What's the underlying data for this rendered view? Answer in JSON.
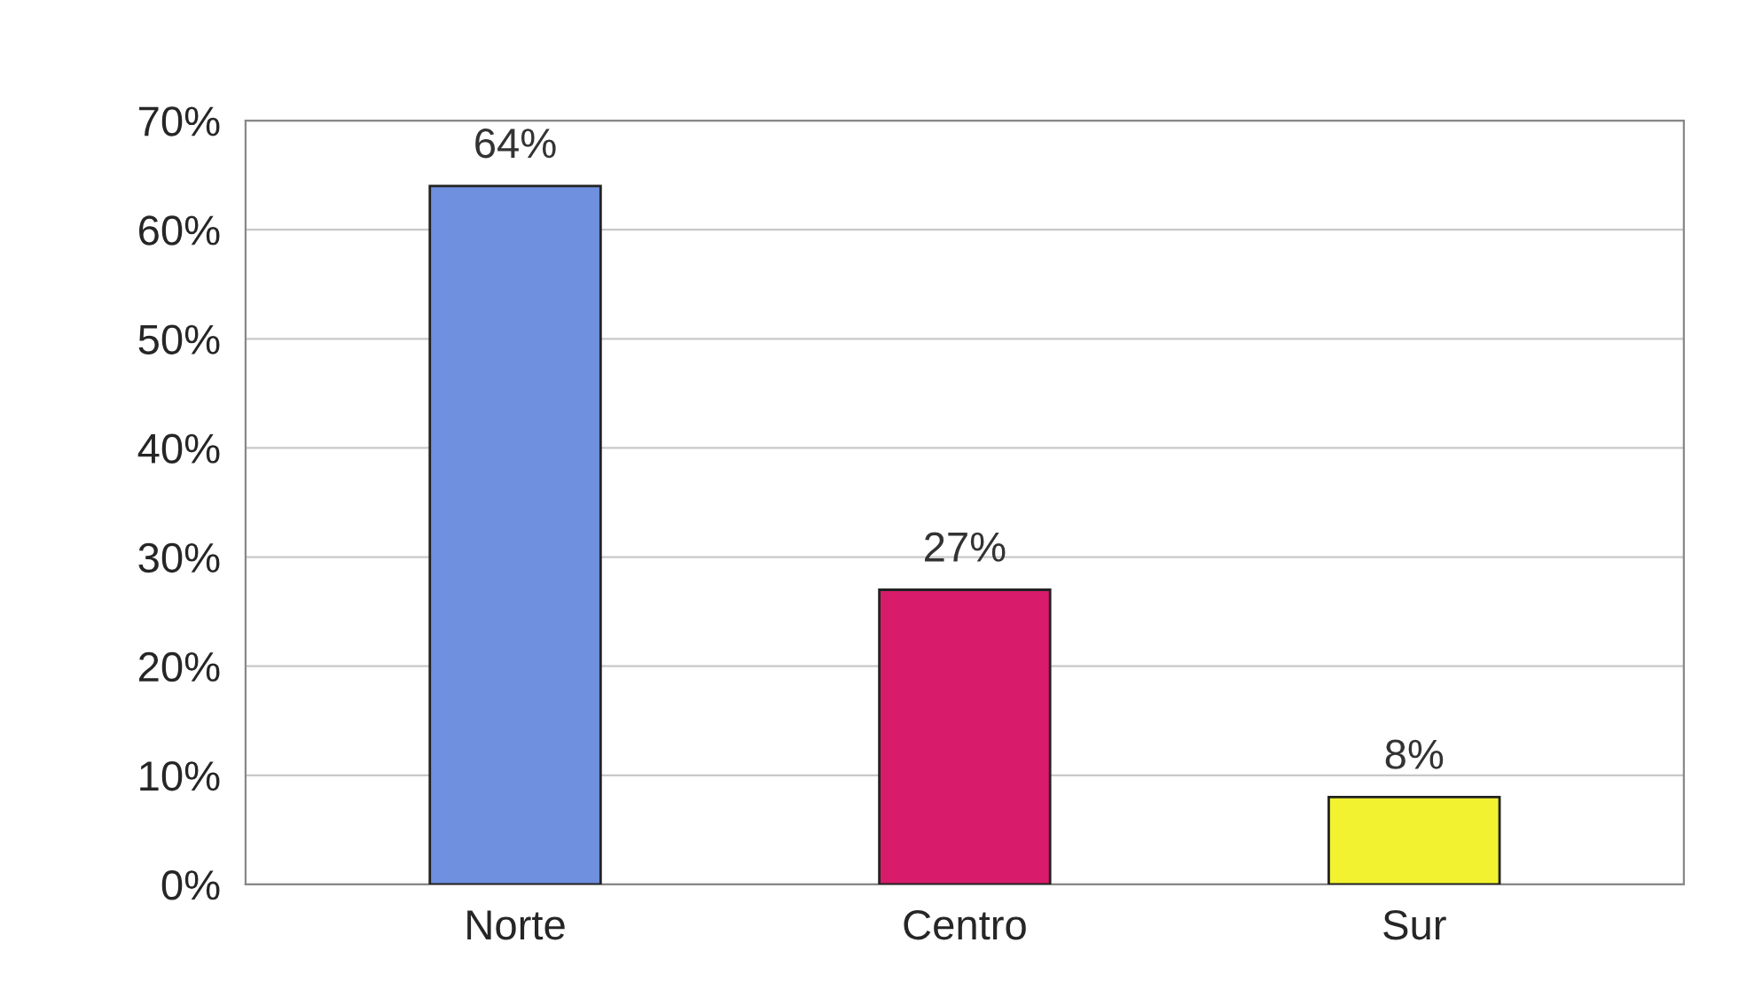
{
  "chart_data": {
    "type": "bar",
    "categories": [
      "Norte",
      "Centro",
      "Sur"
    ],
    "values": [
      64,
      27,
      8
    ],
    "colors": [
      "#6f8fdf",
      "#d81b6a",
      "#f2f230"
    ],
    "value_labels": [
      "64%",
      "27%",
      "8%"
    ],
    "ylim": [
      0,
      70
    ],
    "yticks": [
      {
        "value": 0,
        "label": "0%"
      },
      {
        "value": 10,
        "label": "10%"
      },
      {
        "value": 20,
        "label": "20%"
      },
      {
        "value": 30,
        "label": "30%"
      },
      {
        "value": 40,
        "label": "40%"
      },
      {
        "value": 50,
        "label": "50%"
      },
      {
        "value": 60,
        "label": "60%"
      },
      {
        "value": 70,
        "label": "70%"
      }
    ],
    "grid": "y",
    "legend": false
  }
}
